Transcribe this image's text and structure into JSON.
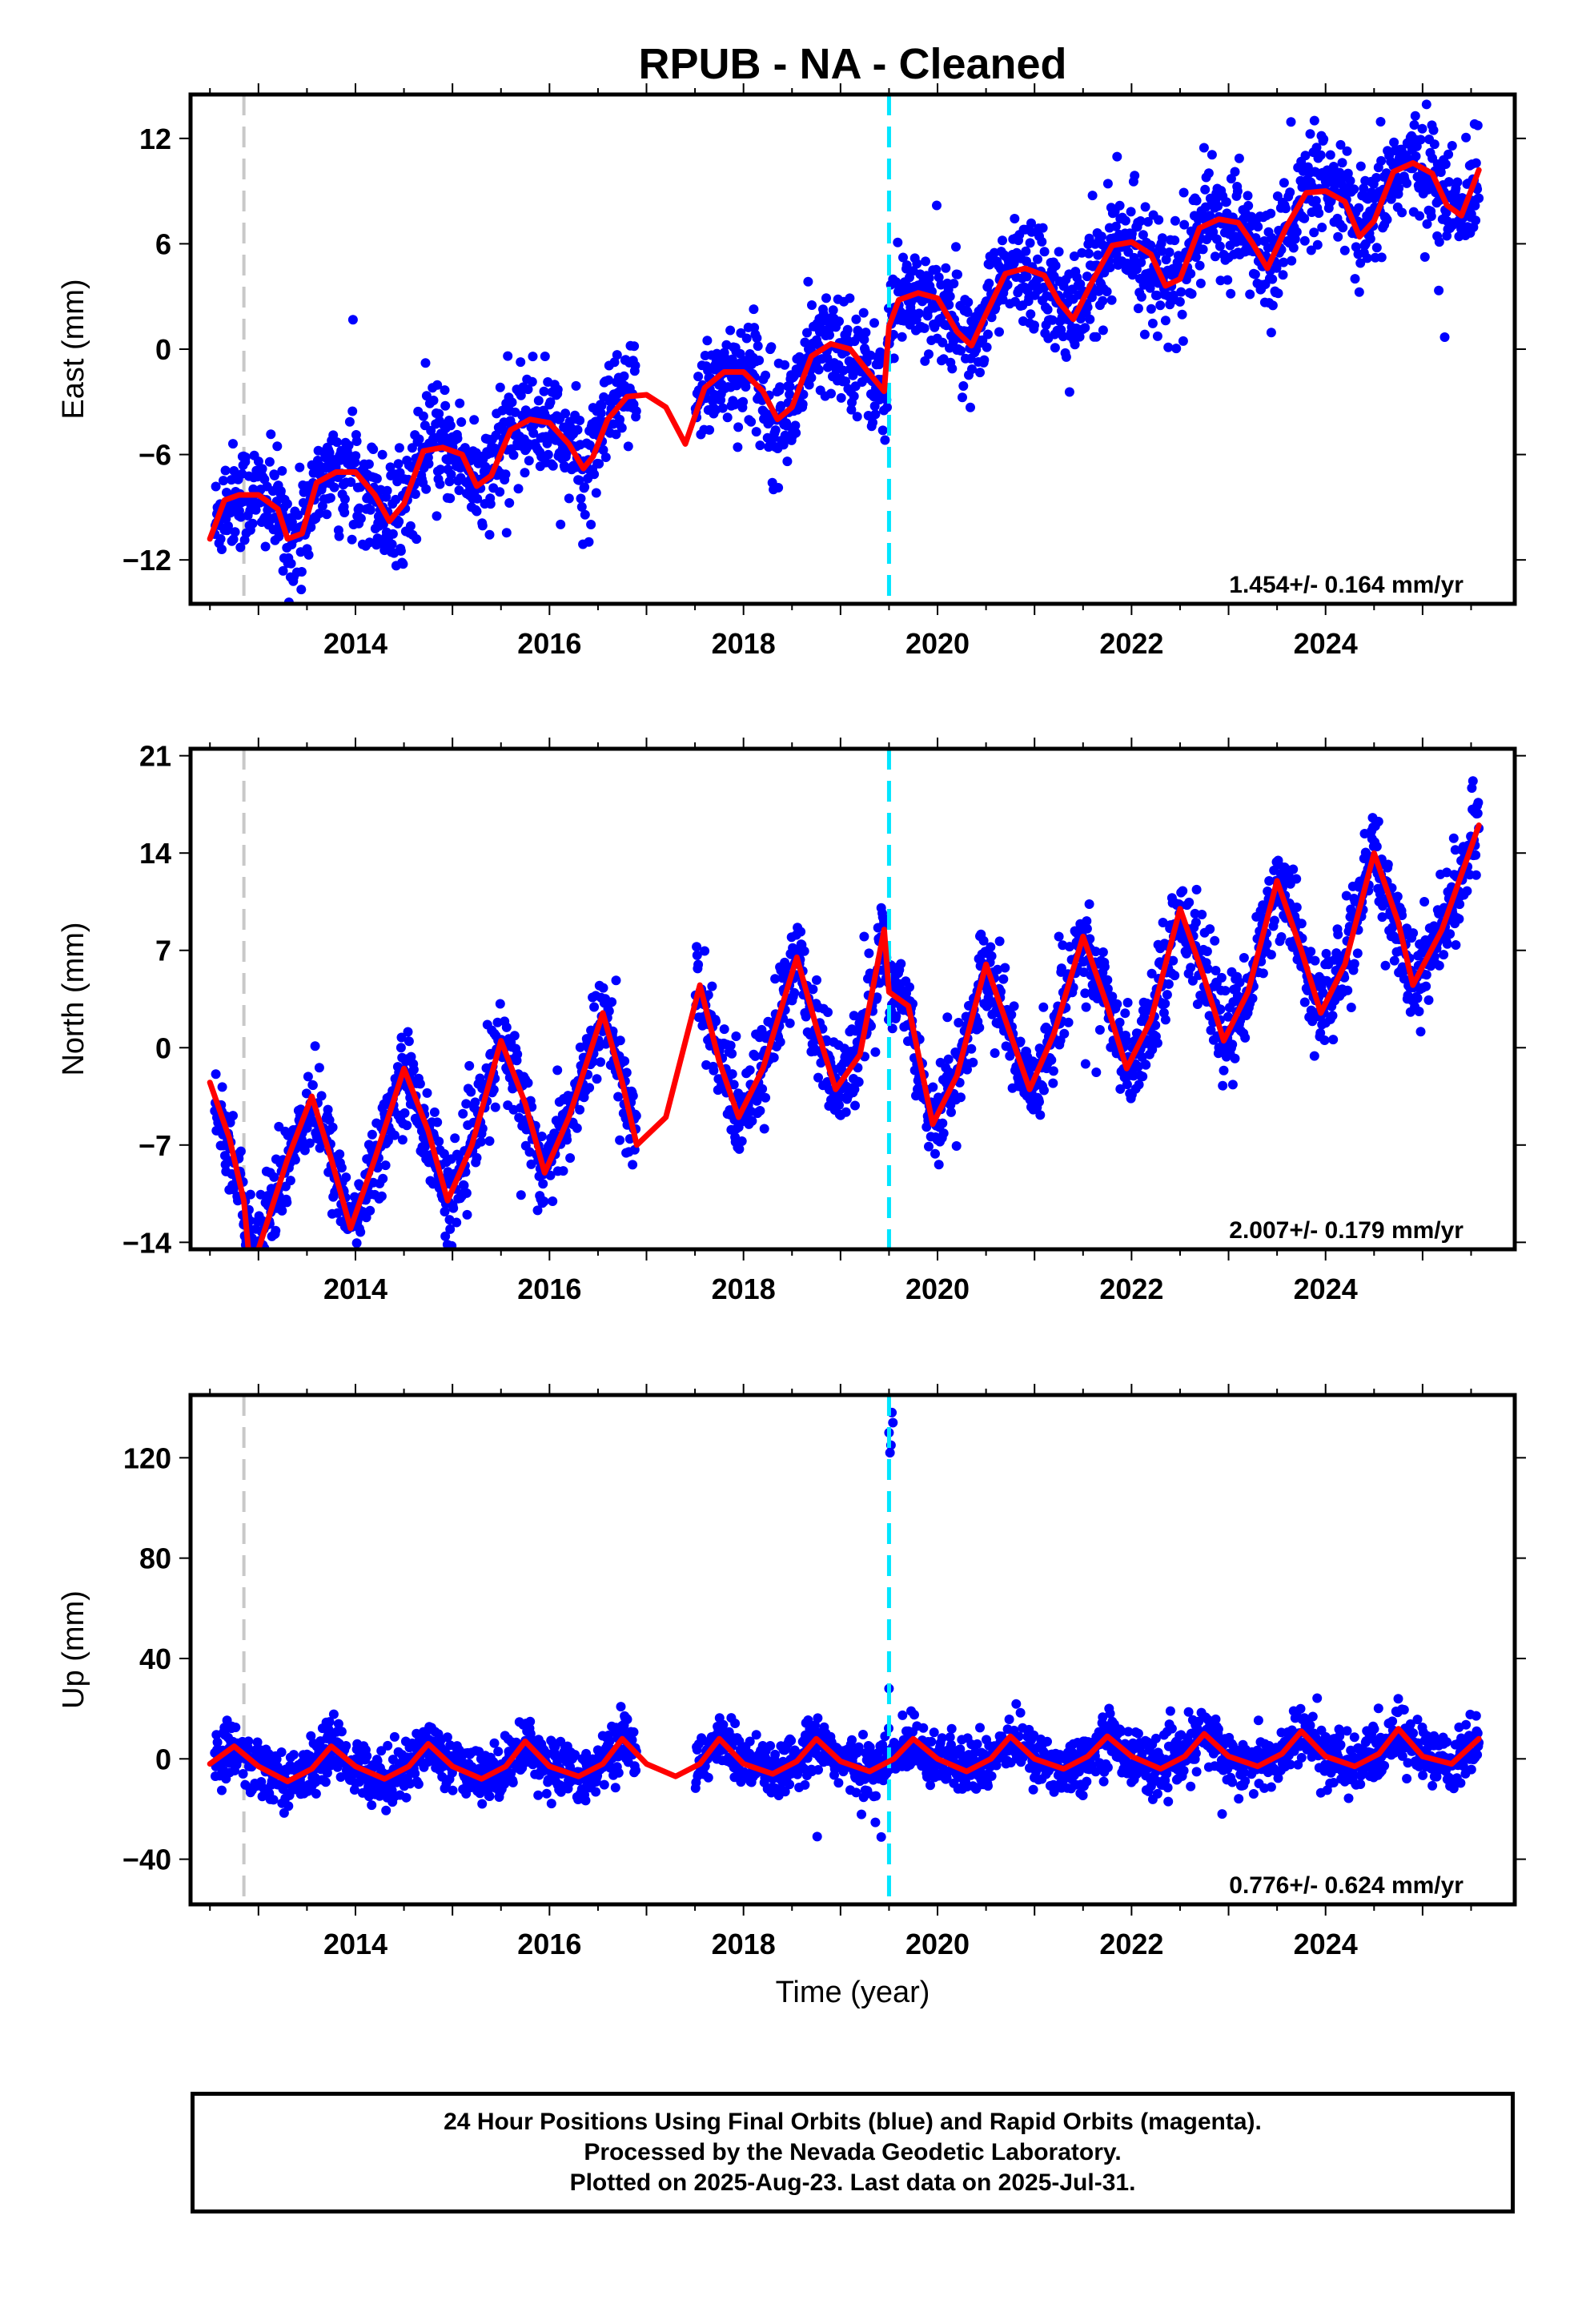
{
  "title": "RPUB  - NA - Cleaned",
  "colors": {
    "points": "#0000ff",
    "fit": "#ff0000",
    "equipment_change": "#c8c8c8",
    "event_line": "#00e5ff"
  },
  "chart_data": [
    {
      "type": "scatter",
      "name": "east",
      "ylabel": "East (mm)",
      "xlim": [
        2012.3,
        2025.95
      ],
      "ylim": [
        -14.5,
        14.5
      ],
      "yticks": [
        12,
        6,
        0,
        -6,
        -12
      ],
      "xticks": [
        2014,
        2016,
        2018,
        2020,
        2022,
        2024
      ],
      "rate_label": "1.454+/- 0.164 mm/yr",
      "vertical_lines": {
        "gray": 2012.85,
        "cyan": 2019.5
      },
      "fit_curve": {
        "x": [
          2012.5,
          2012.65,
          2012.8,
          2013.0,
          2013.2,
          2013.3,
          2013.45,
          2013.6,
          2013.8,
          2014.0,
          2014.2,
          2014.35,
          2014.5,
          2014.7,
          2014.9,
          2015.1,
          2015.25,
          2015.4,
          2015.6,
          2015.8,
          2016.0,
          2016.2,
          2016.35,
          2016.45,
          2016.6,
          2016.8,
          2017.0,
          2017.2,
          2017.4,
          2017.6,
          2017.8,
          2018.0,
          2018.2,
          2018.35,
          2018.5,
          2018.7,
          2018.9,
          2019.1,
          2019.3,
          2019.45,
          2019.5,
          2019.6,
          2019.8,
          2020.0,
          2020.2,
          2020.35,
          2020.5,
          2020.7,
          2020.9,
          2021.1,
          2021.25,
          2021.4,
          2021.6,
          2021.8,
          2022.0,
          2022.2,
          2022.35,
          2022.5,
          2022.7,
          2022.9,
          2023.1,
          2023.25,
          2023.4,
          2023.6,
          2023.8,
          2024.0,
          2024.2,
          2024.35,
          2024.5,
          2024.7,
          2024.9,
          2025.1,
          2025.25,
          2025.4,
          2025.58
        ],
        "y": [
          -10.8,
          -8.6,
          -8.3,
          -8.3,
          -9.1,
          -10.8,
          -10.5,
          -7.6,
          -7.0,
          -7.0,
          -8.3,
          -9.8,
          -8.8,
          -5.8,
          -5.6,
          -6.0,
          -7.8,
          -7.2,
          -4.6,
          -4.0,
          -4.2,
          -5.4,
          -6.8,
          -6.1,
          -4.0,
          -2.7,
          -2.6,
          -3.3,
          -5.4,
          -2.2,
          -1.3,
          -1.3,
          -2.4,
          -4.0,
          -3.3,
          -0.4,
          0.3,
          0.0,
          -1.4,
          -2.4,
          1.3,
          2.8,
          3.2,
          2.9,
          1.0,
          0.2,
          2.0,
          4.3,
          4.6,
          4.2,
          2.7,
          1.7,
          3.9,
          5.9,
          6.1,
          5.4,
          3.6,
          4.0,
          6.9,
          7.4,
          7.2,
          6.0,
          4.6,
          7.0,
          8.9,
          9.0,
          8.4,
          6.4,
          7.3,
          10.1,
          10.6,
          10.0,
          8.2,
          7.6,
          10.2
        ]
      }
    },
    {
      "type": "scatter",
      "name": "north",
      "ylabel": "North (mm)",
      "xlim": [
        2012.3,
        2025.95
      ],
      "ylim": [
        -14.5,
        21.5
      ],
      "yticks": [
        21,
        14,
        7,
        0,
        -7,
        -14
      ],
      "xticks": [
        2014,
        2016,
        2018,
        2020,
        2022,
        2024
      ],
      "rate_label": "2.007+/- 0.179 mm/yr",
      "vertical_lines": {
        "gray": 2012.85,
        "cyan": 2019.5
      },
      "fit_curve": {
        "x": [
          2012.5,
          2012.7,
          2012.85,
          2012.9,
          2013.0,
          2013.3,
          2013.55,
          2013.75,
          2013.95,
          2014.2,
          2014.5,
          2014.75,
          2014.95,
          2015.2,
          2015.5,
          2015.75,
          2015.95,
          2016.2,
          2016.55,
          2016.75,
          2016.9,
          2017.2,
          2017.55,
          2017.75,
          2017.95,
          2018.2,
          2018.55,
          2018.75,
          2018.95,
          2019.2,
          2019.45,
          2019.5,
          2019.7,
          2019.95,
          2020.2,
          2020.5,
          2020.75,
          2020.95,
          2021.2,
          2021.5,
          2021.75,
          2021.95,
          2022.2,
          2022.5,
          2022.75,
          2022.95,
          2023.2,
          2023.5,
          2023.75,
          2023.95,
          2024.2,
          2024.5,
          2024.75,
          2024.9,
          2025.2,
          2025.58
        ],
        "y": [
          -2.5,
          -6.5,
          -11,
          -14.8,
          -14.5,
          -8,
          -3.5,
          -8,
          -13,
          -8,
          -1.5,
          -6,
          -11,
          -7,
          0.5,
          -4,
          -9,
          -5,
          2.5,
          -2.5,
          -7,
          -5,
          4.5,
          -1,
          -5,
          -1.5,
          6.5,
          1.5,
          -3,
          -0.5,
          8.5,
          4,
          3,
          -5.5,
          -2,
          6,
          1,
          -3,
          1,
          8,
          3,
          -1.5,
          2,
          10,
          5,
          0.5,
          4,
          12,
          7,
          2.5,
          6,
          14,
          9,
          4.5,
          8.5,
          16
        ]
      }
    },
    {
      "type": "scatter",
      "name": "up",
      "ylabel": "Up (mm)",
      "xlabel": "Time (year)",
      "xlim": [
        2012.3,
        2025.95
      ],
      "ylim": [
        -58,
        145
      ],
      "yticks": [
        120,
        80,
        40,
        0,
        -40
      ],
      "xticks": [
        2014,
        2016,
        2018,
        2020,
        2022,
        2024
      ],
      "rate_label": "0.776+/- 0.624 mm/yr",
      "vertical_lines": {
        "gray": 2012.85,
        "cyan": 2019.5
      },
      "fit_curve": {
        "x": [
          2012.5,
          2012.75,
          2013.0,
          2013.3,
          2013.55,
          2013.75,
          2014.0,
          2014.3,
          2014.55,
          2014.75,
          2015.0,
          2015.3,
          2015.55,
          2015.75,
          2016.0,
          2016.3,
          2016.55,
          2016.75,
          2017.0,
          2017.3,
          2017.55,
          2017.75,
          2018.0,
          2018.3,
          2018.55,
          2018.75,
          2019.0,
          2019.3,
          2019.55,
          2019.75,
          2020.0,
          2020.3,
          2020.55,
          2020.75,
          2021.0,
          2021.3,
          2021.55,
          2021.75,
          2022.0,
          2022.3,
          2022.55,
          2022.75,
          2023.0,
          2023.3,
          2023.55,
          2023.75,
          2024.0,
          2024.3,
          2024.55,
          2024.75,
          2025.0,
          2025.3,
          2025.58
        ],
        "y": [
          -2,
          5,
          -3,
          -9,
          -4,
          5,
          -3,
          -8,
          -3,
          6,
          -3,
          -8,
          -3,
          7,
          -3,
          -7,
          -2,
          8,
          -2,
          -7,
          -2,
          8,
          -2,
          -6,
          -1,
          8,
          -1,
          -5,
          0,
          8,
          0,
          -5,
          0,
          9,
          0,
          -4,
          1,
          9,
          1,
          -4,
          1,
          10,
          1,
          -3,
          2,
          11,
          1,
          -3,
          2,
          12,
          1,
          -2,
          8
        ]
      }
    }
  ],
  "footer": {
    "line1": "24 Hour Positions Using Final Orbits (blue) and Rapid Orbits (magenta).",
    "line2": "Processed by the Nevada Geodetic Laboratory.",
    "line3": "Plotted on 2025-Aug-23. Last data on 2025-Jul-31."
  }
}
